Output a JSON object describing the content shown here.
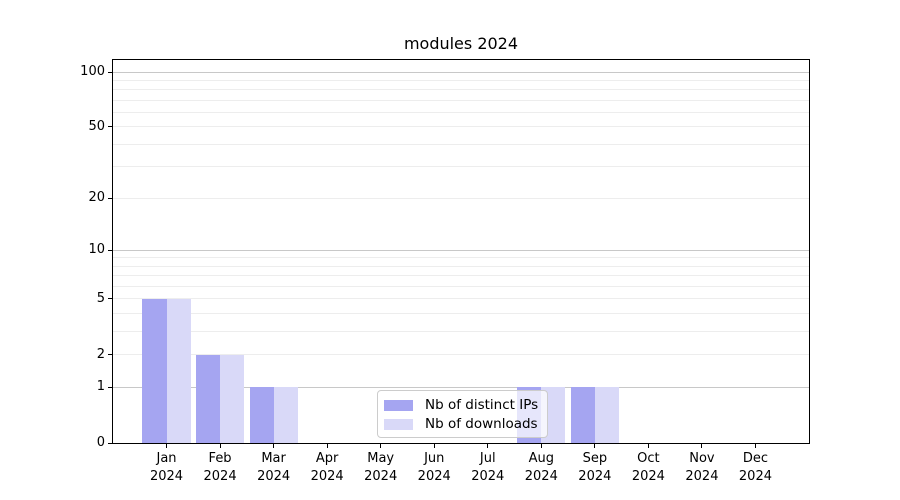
{
  "chart_data": {
    "type": "bar",
    "title": "modules 2024",
    "categories": [
      "Jan",
      "Feb",
      "Mar",
      "Apr",
      "May",
      "Jun",
      "Jul",
      "Aug",
      "Sep",
      "Oct",
      "Nov",
      "Dec"
    ],
    "x_year_suffix": "2024",
    "series": [
      {
        "name": "Nb of distinct IPs",
        "key": "distinct-ips",
        "color": "#a5a5f1",
        "values": [
          5,
          2,
          1,
          0,
          0,
          0,
          0,
          1,
          1,
          0,
          0,
          0
        ]
      },
      {
        "name": "Nb of downloads",
        "key": "downloads",
        "color": "#d9d9f8",
        "values": [
          5,
          2,
          1,
          0,
          0,
          0,
          0,
          1,
          1,
          0,
          0,
          0
        ]
      }
    ],
    "xlabel": "",
    "ylabel": "",
    "y_scale": "log10(1+x)",
    "y_ticks": [
      0,
      1,
      2,
      5,
      10,
      20,
      50,
      100
    ],
    "ylim": [
      0,
      116
    ],
    "grid": {
      "show": true,
      "orientation": "horizontal",
      "minor_values": [
        2,
        3,
        4,
        5,
        6,
        7,
        8,
        9,
        20,
        30,
        40,
        50,
        60,
        70,
        80,
        90
      ],
      "major_values": [
        1,
        10,
        100
      ]
    },
    "legend_position": "lower-center-inside"
  },
  "colors": {
    "grid_minor": "#ededed",
    "grid_major": "#c8c8c8",
    "axis_line": "#000000",
    "text": "#000000",
    "legend_border": "#cccccc",
    "legend_background": "rgba(255,255,255,0.72)"
  }
}
